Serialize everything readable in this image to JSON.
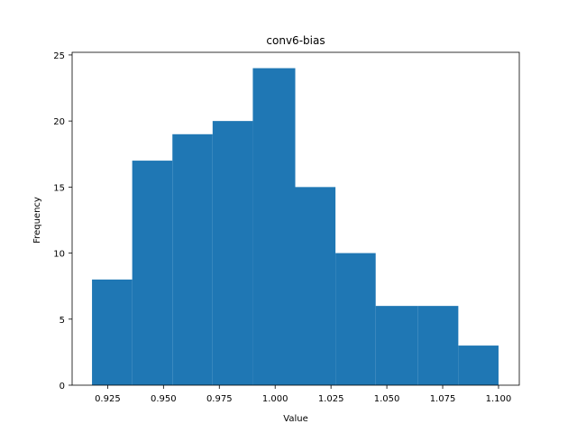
{
  "chart_data": {
    "type": "histogram",
    "title": "conv6-bias",
    "xlabel": "Value",
    "ylabel": "Frequency",
    "bins": [
      {
        "x0": 0.918,
        "x1": 0.936,
        "count": 8
      },
      {
        "x0": 0.936,
        "x1": 0.954,
        "count": 17
      },
      {
        "x0": 0.954,
        "x1": 0.972,
        "count": 19
      },
      {
        "x0": 0.972,
        "x1": 0.99,
        "count": 20
      },
      {
        "x0": 0.99,
        "x1": 1.009,
        "count": 24
      },
      {
        "x0": 1.009,
        "x1": 1.027,
        "count": 15
      },
      {
        "x0": 1.027,
        "x1": 1.045,
        "count": 10
      },
      {
        "x0": 1.045,
        "x1": 1.064,
        "count": 6
      },
      {
        "x0": 1.064,
        "x1": 1.082,
        "count": 6
      },
      {
        "x0": 1.082,
        "x1": 1.1,
        "count": 3
      }
    ],
    "xlim": [
      0.9091,
      1.1093
    ],
    "ylim": [
      0,
      25.2
    ],
    "xticks": [
      0.925,
      0.95,
      0.975,
      1.0,
      1.025,
      1.05,
      1.075,
      1.1
    ],
    "xtick_labels": [
      "0.925",
      "0.950",
      "0.975",
      "1.000",
      "1.025",
      "1.050",
      "1.075",
      "1.100"
    ],
    "yticks": [
      0,
      5,
      10,
      15,
      20,
      25
    ],
    "ytick_labels": [
      "0",
      "5",
      "10",
      "15",
      "20",
      "25"
    ],
    "bar_color": "#1f77b4",
    "grid": false
  }
}
